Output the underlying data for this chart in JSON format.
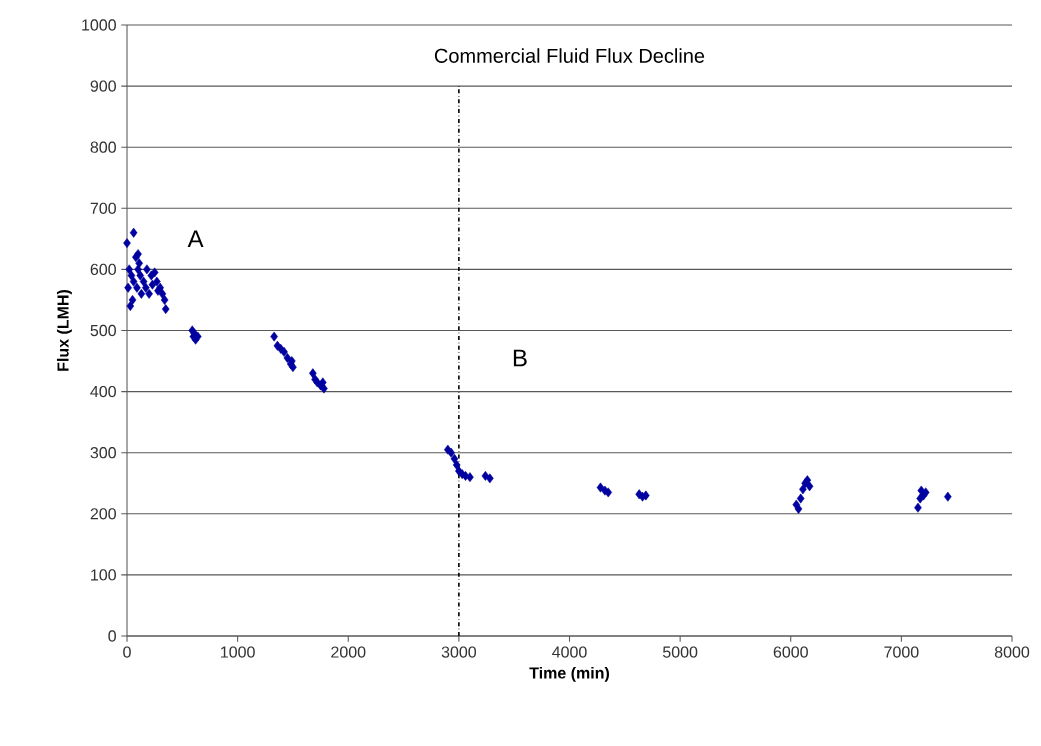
{
  "chart_data": {
    "type": "scatter",
    "title": "Commercial Fluid Flux Decline",
    "xlabel": "Time (min)",
    "ylabel": "Flux (LMH)",
    "xlim": [
      0,
      8000
    ],
    "xticks": [
      0,
      1000,
      2000,
      3000,
      4000,
      5000,
      6000,
      7000,
      8000
    ],
    "ylim": [
      0,
      1000
    ],
    "yticks": [
      0,
      100,
      200,
      300,
      400,
      500,
      600,
      700,
      800,
      900,
      1000
    ],
    "grid": "y",
    "marker": "diamond",
    "series": [
      {
        "color": "#0000a0",
        "x": [
          0,
          60,
          20,
          10,
          30,
          50,
          80,
          100,
          100,
          120,
          150,
          170,
          200,
          220,
          250,
          270,
          300,
          320,
          340,
          350,
          60,
          90,
          130,
          180,
          230,
          280,
          40,
          110,
          590,
          600,
          620,
          610,
          640,
          1330,
          1360,
          1390,
          1420,
          1450,
          1480,
          1500,
          1490,
          1680,
          1700,
          1720,
          1750,
          1780,
          1770,
          2900,
          2930,
          2960,
          2980,
          3000,
          3030,
          3060,
          3100,
          3240,
          3280,
          4280,
          4320,
          4350,
          4630,
          4660,
          4690,
          6050,
          6070,
          6090,
          6110,
          6130,
          6150,
          6170,
          7150,
          7170,
          7180,
          7200,
          7220,
          7420
        ],
        "values": [
          643,
          660,
          600,
          570,
          540,
          550,
          620,
          625,
          600,
          590,
          580,
          570,
          560,
          590,
          595,
          580,
          570,
          560,
          550,
          535,
          580,
          570,
          560,
          600,
          575,
          565,
          590,
          610,
          500,
          490,
          485,
          495,
          490,
          490,
          475,
          470,
          465,
          455,
          445,
          440,
          450,
          430,
          420,
          415,
          410,
          405,
          415,
          305,
          300,
          290,
          280,
          270,
          265,
          262,
          260,
          262,
          258,
          243,
          238,
          235,
          232,
          228,
          230,
          215,
          208,
          225,
          240,
          250,
          255,
          245,
          210,
          225,
          238,
          230,
          235,
          228
        ]
      }
    ],
    "ref_lines": [
      {
        "axis": "x",
        "value": 3000,
        "color": "#000000",
        "line_style": "dashdot"
      }
    ],
    "annotations": [
      "A",
      "B"
    ]
  }
}
